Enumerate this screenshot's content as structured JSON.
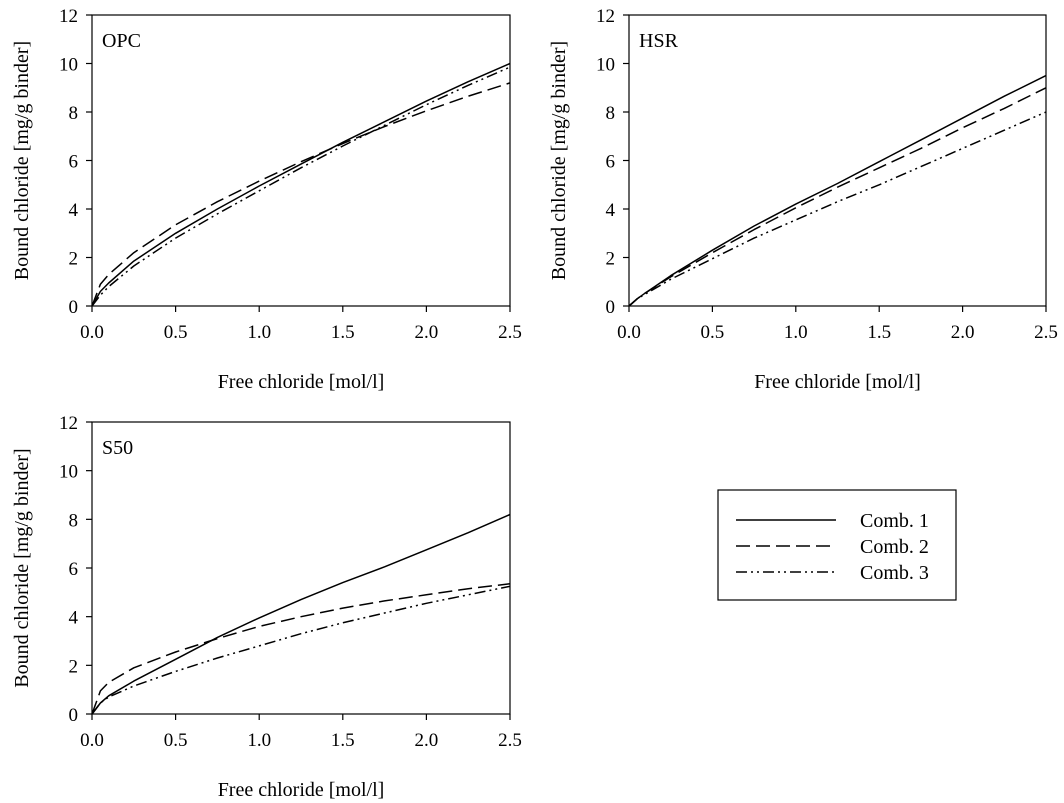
{
  "chart_data": [
    {
      "type": "line",
      "panel_label": "OPC",
      "xlabel": "Free chloride [mol/l]",
      "ylabel": "Bound chloride [mg/g binder]",
      "xlim": [
        0,
        2.5
      ],
      "ylim": [
        0,
        12
      ],
      "xticks": [
        "0.0",
        "0.5",
        "1.0",
        "1.5",
        "2.0",
        "2.5"
      ],
      "yticks": [
        "0",
        "2",
        "4",
        "6",
        "8",
        "10",
        "12"
      ],
      "grid": false,
      "x": [
        0,
        0.05,
        0.1,
        0.25,
        0.5,
        0.75,
        1.0,
        1.25,
        1.5,
        1.75,
        2.0,
        2.25,
        2.5
      ],
      "series": [
        {
          "name": "Comb. 1",
          "style": "solid",
          "values": [
            0,
            0.6,
            0.95,
            1.85,
            3.0,
            4.0,
            4.95,
            5.85,
            6.75,
            7.6,
            8.45,
            9.25,
            10.0
          ]
        },
        {
          "name": "Comb. 2",
          "style": "dashed",
          "values": [
            0,
            0.9,
            1.3,
            2.2,
            3.35,
            4.3,
            5.15,
            5.95,
            6.7,
            7.4,
            8.05,
            8.65,
            9.2
          ]
        },
        {
          "name": "Comb. 3",
          "style": "dash-dot-dot",
          "values": [
            0,
            0.45,
            0.8,
            1.65,
            2.8,
            3.8,
            4.75,
            5.7,
            6.6,
            7.45,
            8.3,
            9.1,
            9.85
          ]
        }
      ]
    },
    {
      "type": "line",
      "panel_label": "HSR",
      "xlabel": "Free chloride [mol/l]",
      "ylabel": "Bound chloride [mg/g binder]",
      "xlim": [
        0,
        2.5
      ],
      "ylim": [
        0,
        12
      ],
      "xticks": [
        "0.0",
        "0.5",
        "1.0",
        "1.5",
        "2.0",
        "2.5"
      ],
      "yticks": [
        "0",
        "2",
        "4",
        "6",
        "8",
        "10",
        "12"
      ],
      "grid": false,
      "x": [
        0,
        0.05,
        0.1,
        0.25,
        0.5,
        0.75,
        1.0,
        1.25,
        1.5,
        1.75,
        2.0,
        2.25,
        2.5
      ],
      "series": [
        {
          "name": "Comb. 1",
          "style": "solid",
          "values": [
            0,
            0.3,
            0.55,
            1.25,
            2.3,
            3.3,
            4.2,
            5.05,
            5.95,
            6.85,
            7.75,
            8.65,
            9.5
          ]
        },
        {
          "name": "Comb. 2",
          "style": "dashed",
          "values": [
            0,
            0.3,
            0.55,
            1.2,
            2.2,
            3.15,
            4.05,
            4.9,
            5.7,
            6.5,
            7.35,
            8.15,
            9.0
          ]
        },
        {
          "name": "Comb. 3",
          "style": "dash-dot-dot",
          "values": [
            0,
            0.3,
            0.5,
            1.1,
            1.95,
            2.8,
            3.55,
            4.3,
            5.0,
            5.75,
            6.5,
            7.25,
            8.0
          ]
        }
      ]
    },
    {
      "type": "line",
      "panel_label": "S50",
      "xlabel": "Free chloride [mol/l]",
      "ylabel": "Bound chloride [mg/g binder]",
      "xlim": [
        0,
        2.5
      ],
      "ylim": [
        0,
        12
      ],
      "xticks": [
        "0.0",
        "0.5",
        "1.0",
        "1.5",
        "2.0",
        "2.5"
      ],
      "yticks": [
        "0",
        "2",
        "4",
        "6",
        "8",
        "10",
        "12"
      ],
      "grid": false,
      "x": [
        0,
        0.05,
        0.1,
        0.25,
        0.5,
        0.75,
        1.0,
        1.25,
        1.5,
        1.75,
        2.0,
        2.25,
        2.5
      ],
      "series": [
        {
          "name": "Comb. 1",
          "style": "solid",
          "values": [
            0,
            0.45,
            0.75,
            1.35,
            2.25,
            3.15,
            3.95,
            4.7,
            5.4,
            6.05,
            6.75,
            7.45,
            8.2
          ]
        },
        {
          "name": "Comb. 2",
          "style": "dashed",
          "values": [
            0,
            0.95,
            1.3,
            1.9,
            2.55,
            3.1,
            3.6,
            4.0,
            4.35,
            4.65,
            4.9,
            5.15,
            5.35
          ]
        },
        {
          "name": "Comb. 3",
          "style": "dash-dot-dot",
          "values": [
            0,
            0.45,
            0.7,
            1.15,
            1.75,
            2.3,
            2.8,
            3.3,
            3.75,
            4.15,
            4.55,
            4.9,
            5.25
          ]
        }
      ]
    }
  ],
  "legend": {
    "placement": "bottom-right",
    "entries": [
      {
        "label": "Comb. 1",
        "style": "solid"
      },
      {
        "label": "Comb. 2",
        "style": "dashed"
      },
      {
        "label": "Comb. 3",
        "style": "dash-dot-dot"
      }
    ]
  },
  "colors": {
    "line": "#000000",
    "background": "#ffffff"
  }
}
